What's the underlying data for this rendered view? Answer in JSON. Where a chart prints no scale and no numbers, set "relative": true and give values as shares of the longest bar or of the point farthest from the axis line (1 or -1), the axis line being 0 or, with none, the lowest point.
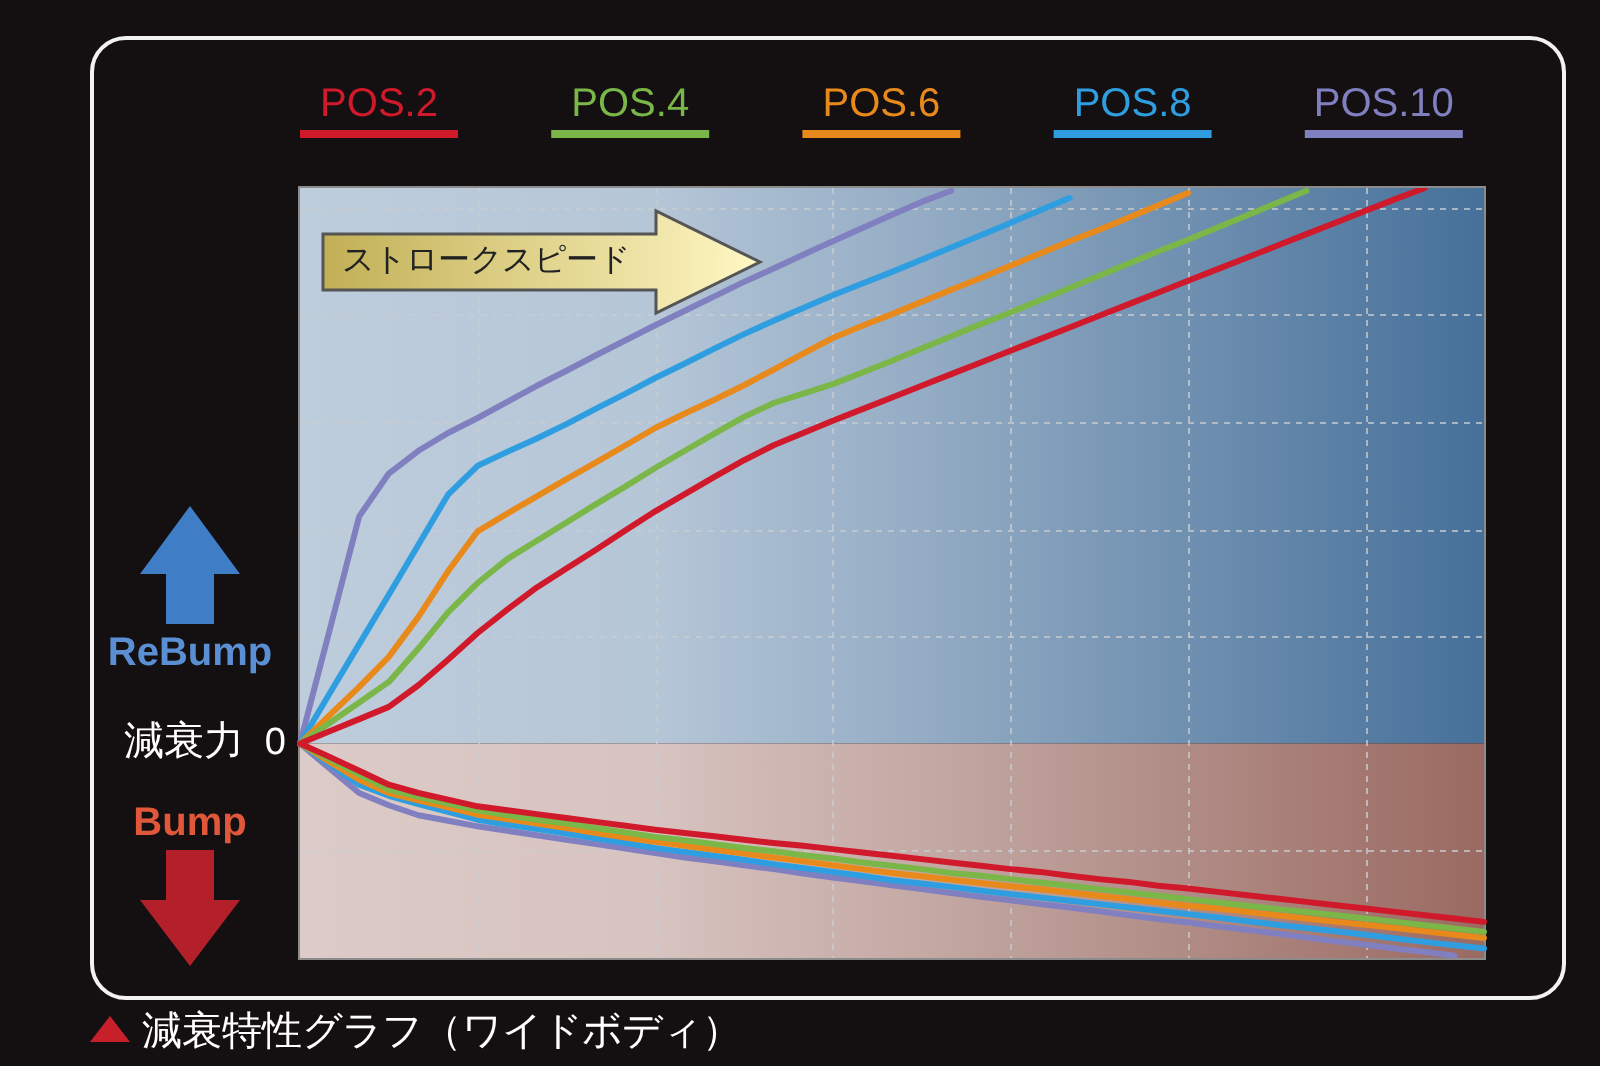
{
  "chart_data": {
    "type": "line",
    "title": "減衰特性グラフ（ワイドボディ）",
    "xlabel": "ストロークスピード",
    "ylabel": "減衰力",
    "relative": true,
    "legend": "top",
    "grid": true,
    "categories": [
      null,
      null,
      null,
      null,
      null,
      null,
      null,
      null,
      null,
      null,
      null,
      null,
      null,
      null,
      null,
      null,
      null,
      null,
      null,
      null,
      null,
      null,
      null,
      null,
      null,
      null,
      null,
      null,
      null,
      null,
      null,
      null,
      null,
      null,
      null,
      null,
      null,
      null,
      null,
      null,
      null
    ],
    "series": [
      {
        "color": "#d0192b",
        "values": [
          0,
          -0.024,
          -0.049,
          -0.074,
          -0.089,
          -0.101,
          -0.113,
          -0.12,
          -0.127,
          -0.134,
          -0.141,
          -0.148,
          -0.155,
          -0.161,
          -0.167,
          -0.173,
          -0.179,
          -0.184,
          -0.19,
          -0.196,
          -0.202,
          -0.208,
          -0.214,
          -0.22,
          -0.226,
          -0.231,
          -0.238,
          -0.244,
          -0.249,
          -0.256,
          -0.261,
          -0.267,
          -0.273,
          -0.279,
          -0.285,
          -0.291,
          -0.297,
          -0.303,
          -0.309,
          -0.315,
          -0.321
        ]
      },
      {
        "color": "#7ab648",
        "values": [
          0,
          -0.028,
          -0.056,
          -0.083,
          -0.096,
          -0.108,
          -0.12,
          -0.129,
          -0.137,
          -0.144,
          -0.152,
          -0.16,
          -0.168,
          -0.174,
          -0.181,
          -0.188,
          -0.194,
          -0.201,
          -0.207,
          -0.214,
          -0.22,
          -0.226,
          -0.233,
          -0.238,
          -0.244,
          -0.25,
          -0.256,
          -0.262,
          -0.268,
          -0.274,
          -0.28,
          -0.286,
          -0.292,
          -0.298,
          -0.303,
          -0.309,
          -0.315,
          -0.321,
          -0.327,
          -0.333,
          -0.339
        ]
      },
      {
        "color": "#e8891c",
        "values": [
          0,
          -0.033,
          -0.065,
          -0.089,
          -0.102,
          -0.115,
          -0.128,
          -0.136,
          -0.144,
          -0.152,
          -0.161,
          -0.169,
          -0.177,
          -0.184,
          -0.191,
          -0.198,
          -0.205,
          -0.212,
          -0.219,
          -0.226,
          -0.233,
          -0.239,
          -0.245,
          -0.251,
          -0.257,
          -0.262,
          -0.268,
          -0.274,
          -0.28,
          -0.286,
          -0.292,
          -0.297,
          -0.303,
          -0.309,
          -0.315,
          -0.321,
          -0.326,
          -0.332,
          -0.338,
          -0.344,
          -0.35
        ]
      },
      {
        "color": "#2f9ee0",
        "values": [
          0,
          -0.037,
          -0.074,
          -0.094,
          -0.109,
          -0.123,
          -0.137,
          -0.146,
          -0.154,
          -0.162,
          -0.171,
          -0.179,
          -0.188,
          -0.195,
          -0.202,
          -0.209,
          -0.217,
          -0.224,
          -0.231,
          -0.238,
          -0.246,
          -0.252,
          -0.258,
          -0.265,
          -0.271,
          -0.277,
          -0.283,
          -0.289,
          -0.295,
          -0.301,
          -0.307,
          -0.313,
          -0.32,
          -0.326,
          -0.332,
          -0.338,
          -0.344,
          -0.351,
          -0.357,
          -0.363,
          -0.369
        ]
      },
      {
        "color": "#8080c0",
        "values": [
          0,
          -0.045,
          -0.089,
          -0.111,
          -0.129,
          -0.139,
          -0.149,
          -0.157,
          -0.165,
          -0.173,
          -0.181,
          -0.189,
          -0.197,
          -0.205,
          -0.212,
          -0.219,
          -0.226,
          -0.234,
          -0.241,
          -0.248,
          -0.255,
          -0.262,
          -0.269,
          -0.276,
          -0.282,
          -0.289,
          -0.295,
          -0.302,
          -0.309,
          -0.316,
          -0.322,
          -0.329,
          -0.335,
          -0.342,
          -0.349,
          -0.356,
          -0.362,
          -0.369,
          -0.375,
          -0.382,
          null
        ]
      },
      {
        "name": "POS.2",
        "color": "#d0192b",
        "values": [
          0,
          0.022,
          0.044,
          0.066,
          0.105,
          0.151,
          0.199,
          0.241,
          0.281,
          0.315,
          0.349,
          0.384,
          0.418,
          0.449,
          0.48,
          0.51,
          0.537,
          0.559,
          0.581,
          0.602,
          0.623,
          0.644,
          0.665,
          0.686,
          0.707,
          0.728,
          0.749,
          0.77,
          0.791,
          0.812,
          0.833,
          0.854,
          0.875,
          0.896,
          0.917,
          0.938,
          0.959,
          0.98,
          1,
          null,
          null
        ]
      },
      {
        "name": "POS.4",
        "color": "#7ab648",
        "values": [
          0,
          0.037,
          0.074,
          0.111,
          0.171,
          0.236,
          0.289,
          0.332,
          0.365,
          0.398,
          0.431,
          0.463,
          0.496,
          0.527,
          0.558,
          0.588,
          0.613,
          0.63,
          0.647,
          0.668,
          0.689,
          0.711,
          0.733,
          0.755,
          0.776,
          0.798,
          0.82,
          0.842,
          0.864,
          0.886,
          0.907,
          0.929,
          0.951,
          0.973,
          0.995,
          null,
          null,
          null,
          null,
          null,
          null
        ]
      },
      {
        "name": "POS.6",
        "color": "#e8891c",
        "values": [
          0,
          0.051,
          0.102,
          0.156,
          0.228,
          0.31,
          0.382,
          0.414,
          0.445,
          0.476,
          0.506,
          0.537,
          0.568,
          0.594,
          0.619,
          0.645,
          0.673,
          0.702,
          0.73,
          0.752,
          0.773,
          0.795,
          0.817,
          0.838,
          0.86,
          0.882,
          0.904,
          0.925,
          0.947,
          0.969,
          0.991,
          null,
          null,
          null,
          null,
          null,
          null,
          null,
          null,
          null,
          null
        ]
      },
      {
        "name": "POS.8",
        "color": "#2f9ee0",
        "values": [
          0,
          0.09,
          0.179,
          0.268,
          0.358,
          0.448,
          0.5,
          0.525,
          0.549,
          0.575,
          0.603,
          0.63,
          0.658,
          0.684,
          0.711,
          0.737,
          0.761,
          0.784,
          0.807,
          0.828,
          0.849,
          0.871,
          0.893,
          0.915,
          0.937,
          0.96,
          0.982,
          null,
          null,
          null,
          null,
          null,
          null,
          null,
          null,
          null,
          null,
          null,
          null,
          null,
          null
        ]
      },
      {
        "name": "POS.10",
        "color": "#8080c0",
        "values": [
          0,
          0.204,
          0.409,
          0.486,
          0.527,
          0.559,
          0.586,
          0.615,
          0.644,
          0.671,
          0.699,
          0.726,
          0.753,
          0.779,
          0.805,
          0.831,
          0.855,
          0.88,
          0.904,
          0.928,
          0.952,
          0.975,
          0.995,
          null,
          null,
          null,
          null,
          null,
          null,
          null,
          null,
          null,
          null,
          null,
          null,
          null,
          null,
          null,
          null,
          null,
          null
        ]
      }
    ],
    "bands": [
      {
        "axis": "y",
        "from": 0,
        "to": 1,
        "label": "ReBump",
        "color": "#46709a"
      },
      {
        "axis": "y",
        "from": -0.386,
        "to": 0,
        "label": "Bump",
        "color": "#9a6a62"
      }
    ],
    "annotations": [
      "0"
    ]
  }
}
